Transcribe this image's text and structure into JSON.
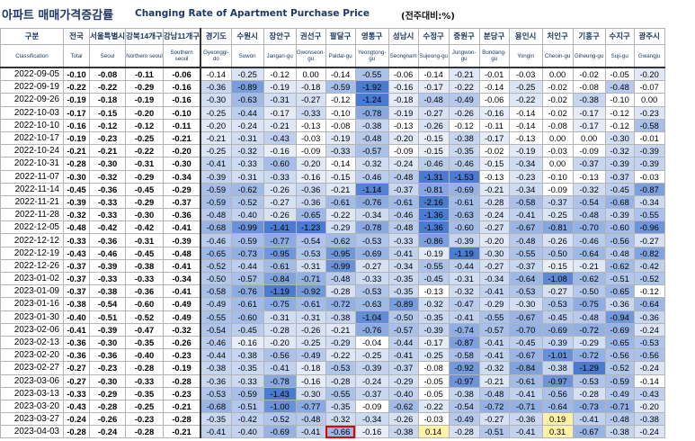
{
  "header": {
    "title_ko": "아파트 매매가격증감률",
    "title_en": "Changing Rate of Apartment Purchase Price",
    "unit": "(전주대비:%)"
  },
  "columns": [
    {
      "ko": "구분",
      "en": "Classification"
    },
    {
      "ko": "전국",
      "en": "Total"
    },
    {
      "ko": "서울특별시",
      "en": "Seoul"
    },
    {
      "ko": "강북14개구",
      "en": "Northern seoul"
    },
    {
      "ko": "강남11개구",
      "en": "Southern seoul"
    },
    {
      "ko": "경기도",
      "en": "Gyeonggi-do"
    },
    {
      "ko": "수원시",
      "en": "Suwon"
    },
    {
      "ko": "장안구",
      "en": "Jangan-gu"
    },
    {
      "ko": "권선구",
      "en": "Gwonseon-gu"
    },
    {
      "ko": "팔달구",
      "en": "Paldal-gu"
    },
    {
      "ko": "영통구",
      "en": "Yeongtong-gu"
    },
    {
      "ko": "성남시",
      "en": "Seongnam"
    },
    {
      "ko": "수정구",
      "en": "Sujeong-gu"
    },
    {
      "ko": "중원구",
      "en": "Jungwon-gu"
    },
    {
      "ko": "분당구",
      "en": "Bundang-gu"
    },
    {
      "ko": "용인시",
      "en": "Yongin"
    },
    {
      "ko": "처인구",
      "en": "Cheoin-gu"
    },
    {
      "ko": "기흥구",
      "en": "Giheung-gu"
    },
    {
      "ko": "수지구",
      "en": "Suji-gu"
    },
    {
      "ko": "광주시",
      "en": "Gwangju"
    }
  ],
  "rows": [
    {
      "date": "2022-09-05",
      "v": [
        -0.1,
        -0.08,
        -0.11,
        -0.06,
        -0.14,
        -0.25,
        -0.12,
        0.0,
        -0.14,
        -0.55,
        -0.06,
        -0.14,
        -0.21,
        -0.01,
        -0.03,
        0.0,
        -0.02,
        -0.05,
        -0.2
      ]
    },
    {
      "date": "2022-09-19",
      "v": [
        -0.22,
        -0.22,
        -0.29,
        -0.16,
        -0.36,
        -0.89,
        -0.19,
        -0.18,
        -0.59,
        -1.92,
        -0.16,
        -0.17,
        -0.22,
        -0.14,
        -0.25,
        -0.02,
        -0.08,
        -0.48,
        -0.07
      ]
    },
    {
      "date": "2022-09-26",
      "v": [
        -0.19,
        -0.18,
        -0.19,
        -0.16,
        -0.3,
        -0.63,
        -0.31,
        -0.27,
        -0.12,
        -1.24,
        -0.18,
        -0.48,
        -0.49,
        -0.06,
        -0.22,
        -0.02,
        -0.38,
        -0.1,
        0.0
      ]
    },
    {
      "date": "2022-10-03",
      "v": [
        -0.17,
        -0.15,
        -0.2,
        -0.1,
        -0.25,
        -0.44,
        -0.17,
        -0.33,
        -0.1,
        -0.78,
        -0.19,
        -0.27,
        -0.26,
        -0.16,
        -0.14,
        -0.02,
        -0.17,
        -0.12,
        -0.23
      ]
    },
    {
      "date": "2022-10-10",
      "v": [
        -0.16,
        -0.12,
        -0.12,
        -0.11,
        -0.2,
        -0.24,
        -0.21,
        -0.13,
        -0.08,
        -0.38,
        -0.13,
        -0.26,
        -0.12,
        -0.11,
        -0.14,
        -0.08,
        -0.17,
        -0.12,
        -0.58
      ]
    },
    {
      "date": "2022-10-17",
      "v": [
        -0.19,
        -0.23,
        -0.25,
        -0.21,
        -0.21,
        -0.31,
        -0.43,
        -0.03,
        -0.19,
        -0.48,
        -0.2,
        -0.15,
        -0.38,
        -0.17,
        -0.13,
        0.0,
        0.0,
        -0.3,
        -0.01
      ]
    },
    {
      "date": "2022-10-24",
      "v": [
        -0.21,
        -0.21,
        -0.22,
        -0.2,
        -0.25,
        -0.32,
        -0.16,
        -0.09,
        -0.33,
        -0.57,
        -0.09,
        -0.15,
        -0.35,
        -0.02,
        -0.19,
        -0.03,
        -0.09,
        -0.32,
        -0.39
      ]
    },
    {
      "date": "2022-10-31",
      "v": [
        -0.28,
        -0.3,
        -0.31,
        -0.3,
        -0.41,
        -0.33,
        -0.6,
        -0.2,
        -0.14,
        -0.32,
        -0.24,
        -0.46,
        -0.46,
        -0.15,
        -0.34,
        0.0,
        -0.37,
        -0.39,
        -0.39
      ]
    },
    {
      "date": "2022-11-07",
      "v": [
        -0.3,
        -0.32,
        -0.29,
        -0.34,
        -0.39,
        -0.31,
        -0.33,
        -0.16,
        -0.15,
        -0.46,
        -0.48,
        -1.31,
        -1.53,
        -0.13,
        -0.23,
        -0.1,
        -0.13,
        -0.37,
        -0.03
      ]
    },
    {
      "date": "2022-11-14",
      "v": [
        -0.45,
        -0.36,
        -0.45,
        -0.29,
        -0.59,
        -0.62,
        -0.26,
        -0.36,
        -0.21,
        -1.14,
        -0.37,
        -0.81,
        -0.69,
        -0.21,
        -0.34,
        -0.09,
        -0.32,
        -0.45,
        -0.87
      ]
    },
    {
      "date": "2022-11-21",
      "v": [
        -0.39,
        -0.33,
        -0.29,
        -0.37,
        -0.59,
        -0.52,
        -0.27,
        -0.36,
        -0.61,
        -0.76,
        -0.61,
        -2.16,
        -0.61,
        -0.28,
        -0.58,
        -0.37,
        -0.54,
        -0.68,
        -0.34
      ]
    },
    {
      "date": "2022-11-28",
      "v": [
        -0.32,
        -0.33,
        -0.3,
        -0.36,
        -0.48,
        -0.4,
        -0.26,
        -0.65,
        -0.22,
        -0.34,
        -0.46,
        -1.36,
        -0.63,
        -0.24,
        -0.41,
        -0.25,
        -0.48,
        -0.39,
        -0.55
      ]
    },
    {
      "date": "2022-12-05",
      "v": [
        -0.48,
        -0.42,
        -0.42,
        -0.41,
        -0.68,
        -0.99,
        -1.41,
        -1.23,
        -0.29,
        -0.78,
        -0.48,
        -1.36,
        -0.6,
        -0.27,
        -0.67,
        -0.81,
        -0.7,
        -0.6,
        -0.96
      ]
    },
    {
      "date": "2022-12-12",
      "v": [
        -0.33,
        -0.36,
        -0.31,
        -0.39,
        -0.46,
        -0.59,
        -0.77,
        -0.54,
        -0.62,
        -0.53,
        -0.33,
        -0.86,
        -0.39,
        -0.2,
        -0.48,
        -0.26,
        -0.46,
        -0.56,
        -0.27
      ]
    },
    {
      "date": "2022-12-19",
      "v": [
        -0.43,
        -0.46,
        -0.45,
        -0.48,
        -0.65,
        -0.73,
        -0.95,
        -0.53,
        -0.95,
        -0.69,
        -0.41,
        -0.19,
        -1.19,
        -0.3,
        -0.55,
        -0.5,
        -0.64,
        -0.48,
        -0.82
      ]
    },
    {
      "date": "2022-12-26",
      "v": [
        -0.37,
        -0.39,
        -0.38,
        -0.41,
        -0.52,
        -0.44,
        -0.61,
        -0.31,
        -0.99,
        -0.27,
        -0.34,
        -0.55,
        -0.44,
        -0.27,
        -0.37,
        -0.15,
        -0.21,
        -0.62,
        -0.42
      ]
    },
    {
      "date": "2023-01-02",
      "v": [
        -0.37,
        -0.33,
        -0.33,
        -0.34,
        -0.5,
        -0.57,
        -0.84,
        -0.71,
        -0.48,
        -0.33,
        -0.35,
        -0.45,
        -0.31,
        -0.34,
        -0.64,
        -1.08,
        -0.62,
        -0.51,
        -0.52
      ]
    },
    {
      "date": "2023-01-09",
      "v": [
        -0.37,
        -0.38,
        -0.36,
        -0.41,
        -0.58,
        -0.76,
        -1.19,
        -0.92,
        -0.28,
        -0.53,
        -0.35,
        -0.13,
        -0.32,
        -0.41,
        -0.53,
        -0.27,
        -0.5,
        -0.65,
        -0.12
      ]
    },
    {
      "date": "2023-01-16",
      "v": [
        -0.38,
        -0.54,
        -0.6,
        -0.49,
        -0.49,
        -0.61,
        -0.75,
        -0.61,
        -0.72,
        -0.63,
        -0.89,
        -0.32,
        -0.47,
        -0.29,
        -0.3,
        -0.53,
        -0.75,
        -0.36,
        -0.64
      ]
    },
    {
      "date": "2023-01-30",
      "v": [
        -0.4,
        -0.51,
        -0.52,
        -0.49,
        -0.55,
        -0.6,
        -0.31,
        -0.31,
        -0.38,
        -1.04,
        -0.5,
        -0.35,
        -0.41,
        -0.55,
        -0.67,
        -0.45,
        -0.48,
        -0.94,
        -0.36
      ]
    },
    {
      "date": "2023-02-06",
      "v": [
        -0.41,
        -0.39,
        -0.47,
        -0.32,
        -0.54,
        -0.45,
        -0.28,
        -0.26,
        -0.21,
        -0.76,
        -0.57,
        -0.39,
        -0.74,
        -0.57,
        -0.7,
        -0.69,
        -0.72,
        -0.69,
        -0.24
      ]
    },
    {
      "date": "2023-02-13",
      "v": [
        -0.36,
        -0.3,
        -0.35,
        -0.26,
        -0.46,
        -0.16,
        -0.2,
        -0.25,
        -0.29,
        -0.04,
        -0.44,
        -0.17,
        -0.87,
        -0.41,
        -0.45,
        -0.39,
        -0.29,
        -0.65,
        -0.53
      ]
    },
    {
      "date": "2023-02-20",
      "v": [
        -0.36,
        -0.36,
        -0.4,
        -0.23,
        -0.44,
        -0.38,
        -0.56,
        -0.49,
        -0.22,
        -0.25,
        -0.41,
        -0.25,
        -0.58,
        -0.41,
        -0.67,
        -1.01,
        -0.72,
        -0.56,
        -0.56
      ]
    },
    {
      "date": "2023-02-27",
      "v": [
        -0.27,
        -0.23,
        -0.28,
        -0.19,
        -0.38,
        -0.35,
        -0.41,
        -0.18,
        -0.53,
        -0.39,
        -0.37,
        -0.08,
        -0.92,
        -0.32,
        -0.84,
        -0.38,
        -1.29,
        -0.52,
        -0.24
      ]
    },
    {
      "date": "2023-03-06",
      "v": [
        -0.27,
        -0.3,
        -0.33,
        -0.28,
        -0.36,
        -0.33,
        -0.78,
        -0.16,
        -0.28,
        -0.24,
        -0.29,
        -0.05,
        -0.97,
        -0.21,
        -0.61,
        -0.97,
        -0.53,
        -0.59,
        -0.14
      ]
    },
    {
      "date": "2023-03-13",
      "v": [
        -0.33,
        -0.29,
        -0.35,
        -0.23,
        -0.53,
        -0.59,
        -1.43,
        -0.3,
        -0.55,
        -0.37,
        -0.4,
        -0.05,
        -0.38,
        -0.48,
        -0.41,
        -0.56,
        -0.28,
        -0.49,
        -0.43
      ]
    },
    {
      "date": "2023-03-20",
      "v": [
        -0.43,
        -0.28,
        -0.25,
        -0.21,
        -0.68,
        -0.51,
        -1.0,
        -0.77,
        -0.35,
        -0.09,
        -0.62,
        -0.22,
        -0.54,
        -0.72,
        -0.71,
        -0.64,
        -0.73,
        -0.71,
        -0.2
      ]
    },
    {
      "date": "2023-03-27",
      "v": [
        -0.24,
        -0.26,
        -0.23,
        -0.28,
        -0.35,
        -0.42,
        -0.52,
        -0.48,
        -0.32,
        -0.34,
        -0.26,
        -0.03,
        -0.49,
        -0.27,
        -0.36,
        0.19,
        -0.41,
        -0.48,
        -0.38
      ]
    },
    {
      "date": "2023-04-03",
      "v": [
        -0.28,
        -0.24,
        -0.28,
        -0.21,
        -0.41,
        -0.4,
        -0.69,
        -0.41,
        -0.66,
        -0.16,
        -0.38,
        0.14,
        -0.28,
        -0.51,
        -0.41,
        0.31,
        -0.67,
        -0.38,
        -0.24
      ]
    }
  ],
  "highlight": {
    "row": 28,
    "col": 9,
    "color": "#e00000"
  },
  "colors": {
    "header_text": "#17365d",
    "positive_fill": "#fff2a8",
    "scale_dark": "#4a7bd0"
  }
}
